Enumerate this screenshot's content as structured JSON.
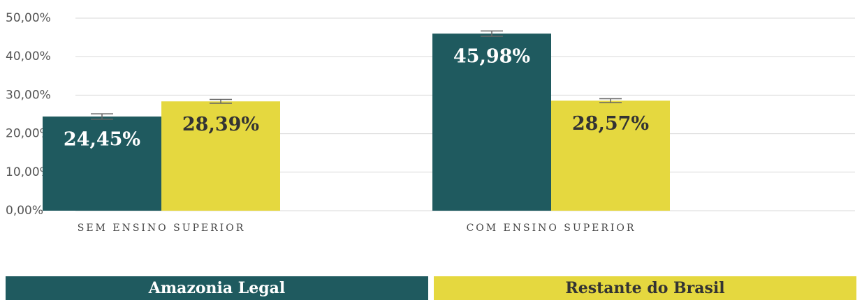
{
  "chart_data": {
    "type": "bar",
    "categories": [
      "SEM ENSINO SUPERIOR",
      "COM ENSINO SUPERIOR"
    ],
    "series": [
      {
        "name": "Amazonia Legal",
        "color": "#1f5a5f",
        "values": [
          24.45,
          45.98
        ],
        "value_labels": [
          "24,45%",
          "45,98%"
        ],
        "errors": [
          0.7,
          0.7
        ]
      },
      {
        "name": "Restante do Brasil",
        "color": "#e5d83f",
        "values": [
          28.39,
          28.57
        ],
        "value_labels": [
          "28,39%",
          "28,57%"
        ],
        "errors": [
          0.5,
          0.5
        ]
      }
    ],
    "ylim": [
      0,
      50
    ],
    "yticks": [
      {
        "value": 0,
        "label": "0,00%"
      },
      {
        "value": 10,
        "label": "10,00%"
      },
      {
        "value": 20,
        "label": "20,00%"
      },
      {
        "value": 30,
        "label": "30,00%"
      },
      {
        "value": 40,
        "label": "40,00%"
      },
      {
        "value": 50,
        "label": "50,00%"
      }
    ],
    "grid": true,
    "legend": "bottom"
  }
}
